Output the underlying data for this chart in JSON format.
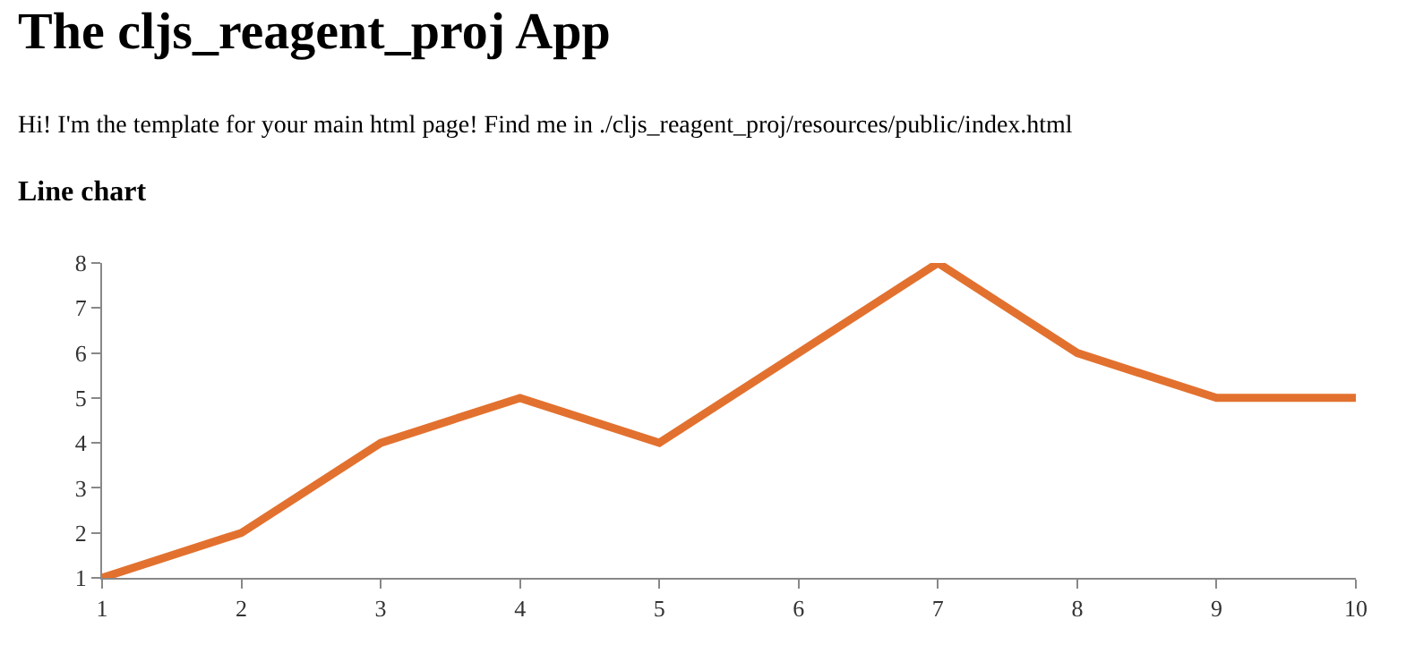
{
  "chart_data": {
    "type": "line",
    "title": "The cljs_reagent_proj App",
    "subtitle": "Hi! I'm the template for your main html page! Find me in ./cljs_reagent_proj/resources/public/index.html",
    "annotations": [
      "Line chart"
    ],
    "x": [
      1,
      2,
      3,
      4,
      5,
      6,
      7,
      8,
      9,
      10
    ],
    "series": [
      {
        "color": "#e2712f",
        "values": [
          1,
          2,
          4,
          5,
          4,
          6,
          8,
          6,
          5,
          5
        ]
      }
    ],
    "xlim": [
      1,
      10
    ],
    "xticks": [
      1,
      2,
      3,
      4,
      5,
      6,
      7,
      8,
      9,
      10
    ],
    "ylim": [
      1,
      8
    ],
    "yticks": [
      1,
      2,
      3,
      4,
      5,
      6,
      7,
      8
    ],
    "marker": "none",
    "line_style": "solid"
  }
}
